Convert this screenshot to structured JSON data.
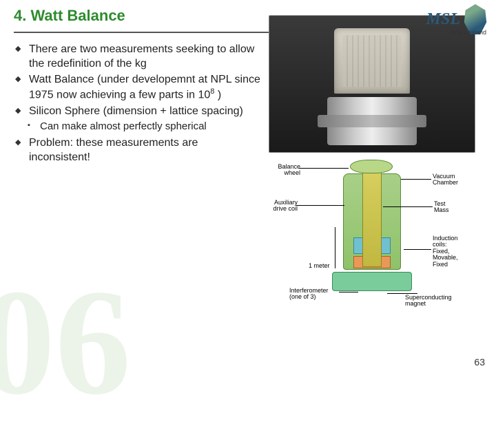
{
  "title": "4. Watt Balance",
  "logo": {
    "text": "MSL",
    "region": "New Zealand"
  },
  "bullets": {
    "b1": "There are two measurements seeking to allow the redefinition of the kg",
    "b2_pre": "Watt Balance (under developemnt at NPL since 1975 now achieving a few parts in 10",
    "b2_exp": "8",
    "b2_post": " )",
    "b3": "Silicon Sphere (dimension + lattice spacing)",
    "sub1": "Can make almost perfectly spherical",
    "b4": "Problem: these measurements are inconsistent!"
  },
  "diagram_labels": {
    "balance_wheel": "Balance\nwheel",
    "vacuum_chamber": "Vacuum\nChamber",
    "aux_coil": "Auxiliary\ndrive coil",
    "test_mass": "Test\nMass",
    "one_meter": "1 meter",
    "induction": "Induction\ncoils:\nFixed,\nMovable,\nFixed",
    "interferometer": "Interferometer\n(one of 3)",
    "magnet": "Superconducting\nmagnet"
  },
  "page_number": "63"
}
